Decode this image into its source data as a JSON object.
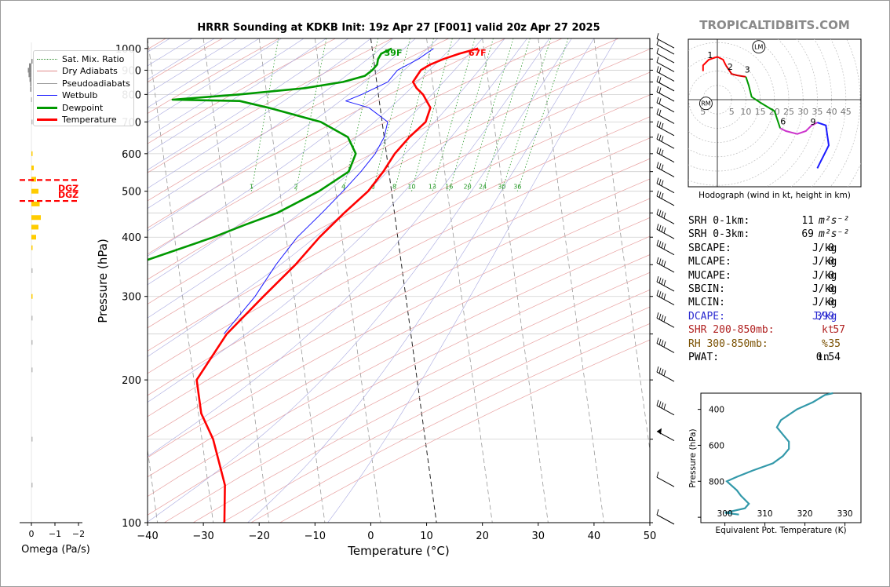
{
  "page": {
    "title": "HRRR Sounding at KDKB Init: 19z Apr 27 [F001] valid 20z Apr 27 2025",
    "watermark": "TROPICALTIDBITS.COM"
  },
  "legend": [
    {
      "label": "Sat. Mix. Ratio",
      "color": "#2a8a2a",
      "style": "dotted",
      "width": 1
    },
    {
      "label": "Dry Adiabats",
      "color": "#e08a8a",
      "style": "solid",
      "width": 1
    },
    {
      "label": "Pseudoadiabats",
      "color": "#9a9a9a",
      "style": "solid",
      "width": 1
    },
    {
      "label": "Wetbulb",
      "color": "#1a1aff",
      "style": "solid",
      "width": 1
    },
    {
      "label": "Dewpoint",
      "color": "#009900",
      "style": "solid",
      "width": 3
    },
    {
      "label": "Temperature",
      "color": "#ff0000",
      "style": "solid",
      "width": 3
    }
  ],
  "skewt": {
    "xlabel": "Temperature (°C)",
    "ylabel": "Pressure (hPa)",
    "xlim": [
      -40,
      50
    ],
    "x_ticks": [
      "−40",
      "−30",
      "−20",
      "−10",
      "0",
      "10",
      "20",
      "30",
      "40",
      "50"
    ],
    "y_ticks": [
      "100",
      "200",
      "300",
      "400",
      "500",
      "600",
      "700",
      "800",
      "900",
      "1000"
    ],
    "surface_temp_label": "67F",
    "surface_dew_label": "39F",
    "mixing_ratio_labels": [
      "1",
      "2",
      "4",
      "6",
      "8",
      "10",
      "13",
      "16",
      "20",
      "24",
      "30",
      "36"
    ]
  },
  "omega": {
    "xlabel": "Omega (Pa/s)",
    "x_ticks": [
      "0",
      "−1",
      "−2"
    ],
    "dgz_labels": [
      "DGZ",
      "DGZ"
    ]
  },
  "hodograph": {
    "caption": "Hodograph (wind in kt, height in km)",
    "ring_labels": [
      "5",
      "5",
      "10",
      "15",
      "20",
      "25",
      "30",
      "35",
      "40",
      "45"
    ],
    "height_labels": [
      "1",
      "2",
      "3",
      "6",
      "9"
    ],
    "markers": [
      "LM",
      "RM"
    ]
  },
  "indices": [
    {
      "label": "SRH 0-1km:",
      "value": "11",
      "unit": "m²s⁻²",
      "color": "#000000"
    },
    {
      "label": "SRH 0-3km:",
      "value": "69",
      "unit": "m²s⁻²",
      "color": "#000000"
    },
    {
      "label": "SBCAPE:",
      "value": "0",
      "unit": "J/kg",
      "color": "#000000"
    },
    {
      "label": "MLCAPE:",
      "value": "0",
      "unit": "J/kg",
      "color": "#000000"
    },
    {
      "label": "MUCAPE:",
      "value": "0",
      "unit": "J/kg",
      "color": "#000000"
    },
    {
      "label": "SBCIN:",
      "value": "0",
      "unit": "J/kg",
      "color": "#000000"
    },
    {
      "label": "MLCIN:",
      "value": "0",
      "unit": "J/kg",
      "color": "#000000"
    },
    {
      "label": "DCAPE:",
      "value": "399",
      "unit": "J/kg",
      "color": "#2a2ad0"
    },
    {
      "label": "SHR 200-850mb:",
      "value": "57",
      "unit": "kt",
      "color": "#b02020"
    },
    {
      "label": "RH 300-850mb:",
      "value": "35",
      "unit": "%",
      "color": "#7a5000"
    },
    {
      "label": "PWAT:",
      "value": "0.54",
      "unit": "in",
      "color": "#000000"
    }
  ],
  "theta_e": {
    "xlabel": "Equivalent Pot. Temperature (K)",
    "ylabel": "Pressure (hPa)",
    "x_ticks": [
      "300",
      "310",
      "320",
      "330"
    ],
    "y_ticks": [
      "400",
      "600",
      "800"
    ]
  },
  "chart_data": [
    {
      "type": "line",
      "name": "skew-t",
      "title": "HRRR Sounding at KDKB Init: 19z Apr 27 [F001] valid 20z Apr 27 2025",
      "xlabel": "Temperature (°C)",
      "ylabel": "Pressure (hPa)",
      "xlim": [
        -40,
        50
      ],
      "ylim": [
        1050,
        100
      ],
      "series": [
        {
          "name": "Temperature",
          "color": "#ff0000",
          "points": [
            [
              1000,
              19
            ],
            [
              975,
              15.5
            ],
            [
              950,
              12.5
            ],
            [
              925,
              10
            ],
            [
              900,
              8.2
            ],
            [
              850,
              6.5
            ],
            [
              825,
              7
            ],
            [
              800,
              8
            ],
            [
              750,
              9
            ],
            [
              700,
              7.8
            ],
            [
              650,
              4.5
            ],
            [
              600,
              1.5
            ],
            [
              550,
              -1
            ],
            [
              500,
              -4.2
            ],
            [
              450,
              -9
            ],
            [
              400,
              -14
            ],
            [
              350,
              -19
            ],
            [
              300,
              -25.5
            ],
            [
              250,
              -33
            ],
            [
              200,
              -39.5
            ],
            [
              170,
              -39.5
            ],
            [
              150,
              -38
            ],
            [
              120,
              -37
            ],
            [
              100,
              -38
            ]
          ]
        },
        {
          "name": "Dewpoint",
          "color": "#009900",
          "points": [
            [
              1000,
              3.5
            ],
            [
              975,
              1.5
            ],
            [
              950,
              0.8
            ],
            [
              925,
              0.5
            ],
            [
              900,
              -0.5
            ],
            [
              875,
              -2
            ],
            [
              850,
              -6
            ],
            [
              825,
              -13
            ],
            [
              800,
              -25
            ],
            [
              790,
              -31
            ],
            [
              780,
              -37
            ],
            [
              775,
              -25
            ],
            [
              750,
              -20
            ],
            [
              700,
              -11
            ],
            [
              650,
              -6.5
            ],
            [
              600,
              -5.5
            ],
            [
              550,
              -7.2
            ],
            [
              500,
              -13
            ],
            [
              450,
              -21
            ],
            [
              425,
              -27
            ],
            [
              400,
              -33
            ],
            [
              350,
              -48
            ],
            [
              300,
              -51
            ],
            [
              250,
              -56
            ],
            [
              200,
              -64
            ],
            [
              170,
              -70
            ],
            [
              150,
              -74
            ],
            [
              120,
              -79
            ],
            [
              100,
              -84
            ]
          ]
        },
        {
          "name": "Wetbulb",
          "points": [
            [
              1000,
              11
            ],
            [
              950,
              8
            ],
            [
              900,
              4
            ],
            [
              850,
              2
            ],
            [
              800,
              -3
            ],
            [
              775,
              -6
            ],
            [
              750,
              -2
            ],
            [
              700,
              1
            ],
            [
              650,
              0
            ],
            [
              600,
              -2
            ],
            [
              550,
              -5
            ],
            [
              500,
              -8.7
            ],
            [
              450,
              -13
            ],
            [
              400,
              -18
            ],
            [
              350,
              -22.5
            ],
            [
              300,
              -27
            ],
            [
              250,
              -33.5
            ]
          ]
        }
      ]
    },
    {
      "type": "line",
      "name": "hodograph",
      "xlim": [
        -10,
        50
      ],
      "ylim": [
        -30,
        20
      ],
      "series": [
        {
          "name": "0-1km",
          "color": "#ff0000",
          "points": [
            [
              -5,
              10
            ],
            [
              -5,
              12
            ],
            [
              -3,
              14
            ],
            [
              0,
              15
            ],
            [
              2,
              14
            ],
            [
              3,
              12
            ]
          ]
        },
        {
          "name": "1-3km",
          "color": "#dd0000",
          "points": [
            [
              3,
              12
            ],
            [
              5,
              9
            ],
            [
              7,
              8.5
            ],
            [
              10,
              8
            ]
          ]
        },
        {
          "name": "3-6km",
          "color": "#009900",
          "points": [
            [
              10,
              8
            ],
            [
              11,
              5
            ],
            [
              12,
              1
            ],
            [
              15,
              -1
            ],
            [
              20,
              -4
            ],
            [
              22,
              -10
            ]
          ]
        },
        {
          "name": "6-9km",
          "color": "#cc33cc",
          "points": [
            [
              22,
              -10
            ],
            [
              24,
              -11
            ],
            [
              28,
              -12
            ],
            [
              31,
              -11
            ],
            [
              33,
              -9
            ],
            [
              35,
              -8
            ]
          ]
        },
        {
          "name": "9-12km",
          "color": "#1a1aff",
          "points": [
            [
              35,
              -8
            ],
            [
              38,
              -9
            ],
            [
              39,
              -16
            ],
            [
              37,
              -20
            ],
            [
              36,
              -22
            ],
            [
              35,
              -24
            ]
          ]
        }
      ]
    },
    {
      "type": "line",
      "name": "omega",
      "xlabel": "Omega (Pa/s)",
      "xlim": [
        0.3,
        -2.2
      ],
      "ylim": [
        1050,
        100
      ],
      "series": [
        {
          "name": "Omega",
          "color": "#ffcc00",
          "points": [
            [
              940,
              0
            ],
            [
              920,
              0.1
            ],
            [
              900,
              0.15
            ],
            [
              880,
              0.12
            ],
            [
              860,
              0.08
            ],
            [
              840,
              0.05
            ],
            [
              820,
              0.05
            ],
            [
              780,
              0.02
            ],
            [
              700,
              0
            ],
            [
              600,
              -0.05
            ],
            [
              560,
              -0.1
            ],
            [
              530,
              -0.2
            ],
            [
              500,
              -0.3
            ],
            [
              470,
              -0.35
            ],
            [
              440,
              -0.4
            ],
            [
              420,
              -0.3
            ],
            [
              400,
              -0.2
            ],
            [
              380,
              -0.05
            ],
            [
              340,
              0
            ],
            [
              300,
              -0.05
            ],
            [
              270,
              -0.02
            ],
            [
              240,
              0
            ],
            [
              210,
              0
            ],
            [
              150,
              0
            ],
            [
              120,
              0
            ]
          ]
        }
      ],
      "annotations": [
        {
          "label": "DGZ",
          "pressure": 477
        },
        {
          "label": "DGZ",
          "pressure": 528
        }
      ]
    },
    {
      "type": "line",
      "name": "theta-e",
      "xlabel": "Equivalent Pot. Temperature (K)",
      "ylabel": "Pressure (hPa)",
      "xlim": [
        294,
        334
      ],
      "ylim": [
        1000,
        300
      ],
      "series": [
        {
          "name": "Theta-e",
          "color": "#3399aa",
          "points": [
            [
              985,
              303.5
            ],
            [
              975,
              300
            ],
            [
              950,
              305
            ],
            [
              925,
              306
            ],
            [
              880,
              304
            ],
            [
              850,
              303
            ],
            [
              800,
              300.5
            ],
            [
              775,
              303
            ],
            [
              740,
              307
            ],
            [
              700,
              312
            ],
            [
              660,
              314.5
            ],
            [
              620,
              316
            ],
            [
              580,
              316
            ],
            [
              540,
              314.5
            ],
            [
              500,
              313
            ],
            [
              460,
              314
            ],
            [
              430,
              316
            ],
            [
              400,
              318
            ],
            [
              360,
              322
            ],
            [
              320,
              325
            ],
            [
              300,
              327
            ]
          ]
        }
      ]
    }
  ]
}
